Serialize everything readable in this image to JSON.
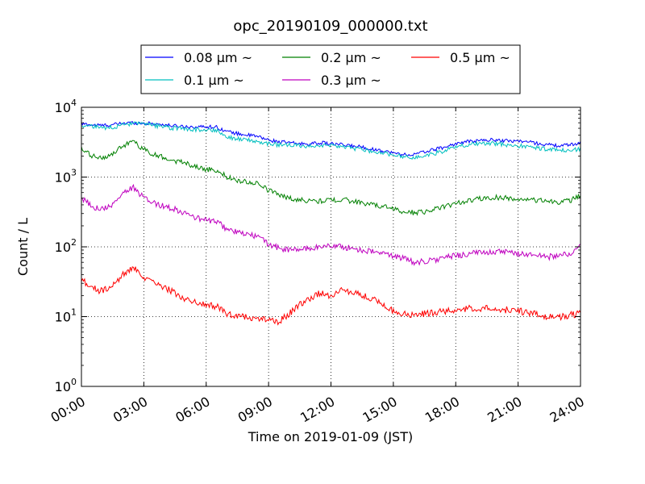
{
  "chart_data": {
    "type": "line",
    "title": "opc_20190109_000000.txt",
    "xlabel": "Time on 2019-01-09 (JST)",
    "ylabel": "Count / L",
    "x_unit": "hours",
    "xlim": [
      0,
      24
    ],
    "ylim": [
      1,
      10000
    ],
    "y_scale": "log",
    "grid": true,
    "legend_position": "top-center-outside",
    "x_ticks": [
      "00:00",
      "03:00",
      "06:00",
      "09:00",
      "12:00",
      "15:00",
      "18:00",
      "21:00",
      "24:00"
    ],
    "y_ticks": [
      {
        "base": "10",
        "exp": "0"
      },
      {
        "base": "10",
        "exp": "1"
      },
      {
        "base": "10",
        "exp": "2"
      },
      {
        "base": "10",
        "exp": "3"
      },
      {
        "base": "10",
        "exp": "4"
      }
    ],
    "x": [
      0,
      0.5,
      1,
      1.5,
      2,
      2.5,
      3,
      3.5,
      4,
      4.5,
      5,
      5.5,
      6,
      6.5,
      7,
      7.5,
      8,
      8.5,
      9,
      9.5,
      10,
      10.5,
      11,
      11.5,
      12,
      12.5,
      13,
      13.5,
      14,
      14.5,
      15,
      15.5,
      16,
      16.5,
      17,
      17.5,
      18,
      18.5,
      19,
      19.5,
      20,
      20.5,
      21,
      21.5,
      22,
      22.5,
      23,
      23.5,
      24
    ],
    "series": [
      {
        "name": "0.08 μm ~",
        "color": "#0000ff",
        "values": [
          5800,
          5600,
          5500,
          5600,
          5900,
          6000,
          5900,
          5800,
          5600,
          5400,
          5300,
          5200,
          5300,
          5200,
          4500,
          4200,
          4000,
          3800,
          3400,
          3200,
          3100,
          3000,
          3000,
          3100,
          3000,
          2900,
          2800,
          2700,
          2500,
          2400,
          2200,
          2100,
          2100,
          2300,
          2500,
          2700,
          3000,
          3200,
          3300,
          3400,
          3400,
          3300,
          3300,
          3200,
          3000,
          2900,
          2800,
          2900,
          3100
        ]
      },
      {
        "name": "0.1 μm ~",
        "color": "#00bfbf",
        "values": [
          5500,
          5300,
          5100,
          5200,
          5600,
          5800,
          5700,
          5500,
          5200,
          5000,
          4900,
          4800,
          4800,
          4700,
          3800,
          3500,
          3400,
          3200,
          3000,
          2900,
          2850,
          2800,
          2800,
          2850,
          2800,
          2700,
          2600,
          2500,
          2300,
          2200,
          2100,
          1950,
          1900,
          2000,
          2200,
          2400,
          2700,
          2900,
          3000,
          3000,
          3000,
          2900,
          2800,
          2700,
          2600,
          2500,
          2400,
          2400,
          2500
        ]
      },
      {
        "name": "0.2 μm ~",
        "color": "#008000",
        "values": [
          2500,
          2000,
          1900,
          2100,
          2800,
          3200,
          2500,
          2100,
          1900,
          1700,
          1600,
          1400,
          1300,
          1250,
          1000,
          900,
          850,
          800,
          650,
          560,
          500,
          470,
          460,
          450,
          470,
          480,
          450,
          430,
          400,
          380,
          350,
          320,
          310,
          320,
          350,
          380,
          420,
          450,
          480,
          500,
          510,
          500,
          480,
          470,
          460,
          450,
          440,
          460,
          550
        ]
      },
      {
        "name": "0.3 μm ~",
        "color": "#bf00bf",
        "values": [
          500,
          380,
          350,
          400,
          600,
          700,
          500,
          420,
          380,
          350,
          300,
          260,
          240,
          230,
          180,
          160,
          150,
          140,
          110,
          95,
          90,
          92,
          95,
          100,
          105,
          100,
          95,
          90,
          85,
          80,
          75,
          68,
          60,
          62,
          65,
          70,
          75,
          78,
          82,
          85,
          85,
          83,
          80,
          78,
          75,
          72,
          75,
          80,
          100
        ]
      },
      {
        "name": "0.5 μm ~",
        "color": "#ff0000",
        "values": [
          35,
          26,
          23,
          27,
          40,
          50,
          35,
          30,
          26,
          22,
          18,
          16,
          15,
          14,
          11,
          10,
          10,
          9.5,
          9,
          8.5,
          11,
          15,
          18,
          22,
          20,
          24,
          22,
          20,
          18,
          15,
          12,
          11,
          10.5,
          11,
          11.5,
          12,
          12.5,
          13,
          13,
          13,
          12.5,
          12.5,
          12,
          11.5,
          10.5,
          10,
          10,
          10.5,
          11
        ]
      }
    ]
  }
}
